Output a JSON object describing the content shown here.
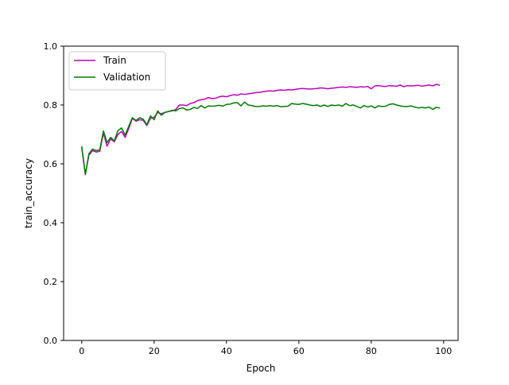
{
  "chart_data": {
    "type": "line",
    "title": "",
    "xlabel": "Epoch",
    "ylabel": "train_accuracy",
    "xlim": [
      -5,
      104
    ],
    "ylim": [
      0.0,
      1.0
    ],
    "x_ticks": [
      0,
      20,
      40,
      60,
      80,
      100
    ],
    "y_ticks": [
      0.0,
      0.2,
      0.4,
      0.6,
      0.8,
      1.0
    ],
    "x_tick_labels": [
      "0",
      "20",
      "40",
      "60",
      "80",
      "100"
    ],
    "y_tick_labels": [
      "0.0",
      "0.2",
      "0.4",
      "0.6",
      "0.8",
      "1.0"
    ],
    "grid": false,
    "legend_position": "upper-left",
    "x": [
      0,
      1,
      2,
      3,
      4,
      5,
      6,
      7,
      8,
      9,
      10,
      11,
      12,
      13,
      14,
      15,
      16,
      17,
      18,
      19,
      20,
      21,
      22,
      23,
      24,
      25,
      26,
      27,
      28,
      29,
      30,
      31,
      32,
      33,
      34,
      35,
      36,
      37,
      38,
      39,
      40,
      41,
      42,
      43,
      44,
      45,
      46,
      47,
      48,
      49,
      50,
      51,
      52,
      53,
      54,
      55,
      56,
      57,
      58,
      59,
      60,
      61,
      62,
      63,
      64,
      65,
      66,
      67,
      68,
      69,
      70,
      71,
      72,
      73,
      74,
      75,
      76,
      77,
      78,
      79,
      80,
      81,
      82,
      83,
      84,
      85,
      86,
      87,
      88,
      89,
      90,
      91,
      92,
      93,
      94,
      95,
      96,
      97,
      98,
      99
    ],
    "series": [
      {
        "name": "Train",
        "color": "#bf00bf",
        "values": [
          0.655,
          0.565,
          0.63,
          0.645,
          0.64,
          0.643,
          0.705,
          0.66,
          0.685,
          0.675,
          0.7,
          0.71,
          0.69,
          0.72,
          0.755,
          0.745,
          0.75,
          0.748,
          0.73,
          0.755,
          0.758,
          0.775,
          0.77,
          0.775,
          0.778,
          0.78,
          0.785,
          0.8,
          0.8,
          0.798,
          0.805,
          0.808,
          0.815,
          0.818,
          0.82,
          0.825,
          0.822,
          0.823,
          0.828,
          0.83,
          0.828,
          0.832,
          0.835,
          0.833,
          0.838,
          0.836,
          0.838,
          0.84,
          0.842,
          0.843,
          0.845,
          0.847,
          0.848,
          0.847,
          0.85,
          0.851,
          0.85,
          0.852,
          0.851,
          0.853,
          0.855,
          0.856,
          0.855,
          0.854,
          0.855,
          0.856,
          0.858,
          0.857,
          0.855,
          0.857,
          0.858,
          0.86,
          0.861,
          0.86,
          0.862,
          0.861,
          0.86,
          0.862,
          0.861,
          0.863,
          0.855,
          0.865,
          0.866,
          0.864,
          0.863,
          0.866,
          0.865,
          0.864,
          0.868,
          0.862,
          0.866,
          0.865,
          0.866,
          0.867,
          0.864,
          0.866,
          0.868,
          0.865,
          0.87,
          0.867
        ]
      },
      {
        "name": "Validation",
        "color": "#007f00",
        "values": [
          0.66,
          0.563,
          0.635,
          0.65,
          0.645,
          0.648,
          0.712,
          0.672,
          0.69,
          0.678,
          0.713,
          0.722,
          0.698,
          0.728,
          0.757,
          0.747,
          0.757,
          0.752,
          0.733,
          0.763,
          0.75,
          0.78,
          0.765,
          0.775,
          0.778,
          0.782,
          0.78,
          0.788,
          0.79,
          0.783,
          0.785,
          0.792,
          0.788,
          0.798,
          0.79,
          0.797,
          0.796,
          0.797,
          0.799,
          0.796,
          0.802,
          0.803,
          0.807,
          0.808,
          0.797,
          0.81,
          0.8,
          0.798,
          0.795,
          0.795,
          0.797,
          0.796,
          0.798,
          0.796,
          0.798,
          0.794,
          0.795,
          0.796,
          0.805,
          0.803,
          0.802,
          0.805,
          0.803,
          0.8,
          0.798,
          0.8,
          0.795,
          0.8,
          0.795,
          0.8,
          0.798,
          0.8,
          0.796,
          0.805,
          0.798,
          0.8,
          0.795,
          0.79,
          0.798,
          0.793,
          0.797,
          0.79,
          0.797,
          0.795,
          0.796,
          0.802,
          0.804,
          0.8,
          0.797,
          0.795,
          0.795,
          0.797,
          0.793,
          0.79,
          0.792,
          0.79,
          0.793,
          0.785,
          0.792,
          0.79
        ]
      }
    ]
  }
}
